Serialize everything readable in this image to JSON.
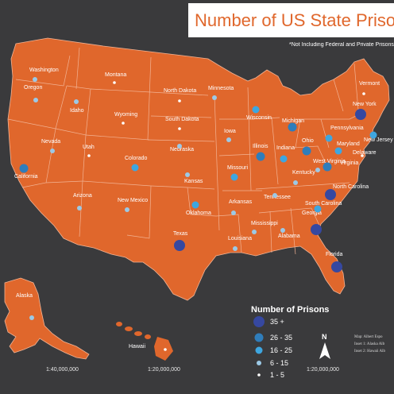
{
  "title": "Number of US State Prisons p",
  "note": "*Not Including Federal and Private Prisons",
  "colors": {
    "background": "#3a3a3c",
    "land": "#e0672c",
    "border": "#f2b394",
    "tier_35_plus": "#3648a0",
    "tier_26_35": "#2f7dbb",
    "tier_16_25": "#3ea6e0",
    "tier_6_15": "#9cc9e6",
    "tier_1_5": "#ffffff"
  },
  "legend": {
    "title": "Number of Prisons",
    "items": [
      {
        "label": "35 +",
        "tier": "tier_35_plus"
      },
      {
        "label": "26 - 35",
        "tier": "tier_26_35"
      },
      {
        "label": "16 - 25",
        "tier": "tier_16_25"
      },
      {
        "label": "6 - 15",
        "tier": "tier_6_15"
      },
      {
        "label": "1 - 5",
        "tier": "tier_1_5"
      }
    ]
  },
  "scales": {
    "alaska": "1:40,000,000",
    "hawaii": "1:20,000,000",
    "main": "1:20,000,000"
  },
  "north_label": "N",
  "source_lines": [
    "Map: Albert Espo",
    "Inset 1: Alaska Alb",
    "Inset 2: Hawaii Alb"
  ],
  "states": [
    {
      "name": "Washington",
      "tier": "tier_6_15"
    },
    {
      "name": "Oregon",
      "tier": "tier_6_15"
    },
    {
      "name": "California",
      "tier": "tier_26_35"
    },
    {
      "name": "Idaho",
      "tier": "tier_6_15"
    },
    {
      "name": "Nevada",
      "tier": "tier_6_15"
    },
    {
      "name": "Utah",
      "tier": "tier_1_5"
    },
    {
      "name": "Arizona",
      "tier": "tier_6_15"
    },
    {
      "name": "Montana",
      "tier": "tier_1_5"
    },
    {
      "name": "Wyoming",
      "tier": "tier_1_5"
    },
    {
      "name": "Colorado",
      "tier": "tier_16_25"
    },
    {
      "name": "New Mexico",
      "tier": "tier_6_15"
    },
    {
      "name": "North Dakota",
      "tier": "tier_1_5"
    },
    {
      "name": "South Dakota",
      "tier": "tier_1_5"
    },
    {
      "name": "Nebraska",
      "tier": "tier_6_15"
    },
    {
      "name": "Kansas",
      "tier": "tier_6_15"
    },
    {
      "name": "Oklahoma",
      "tier": "tier_16_25"
    },
    {
      "name": "Texas",
      "tier": "tier_35_plus"
    },
    {
      "name": "Minnesota",
      "tier": "tier_6_15"
    },
    {
      "name": "Iowa",
      "tier": "tier_6_15"
    },
    {
      "name": "Missouri",
      "tier": "tier_16_25"
    },
    {
      "name": "Arkansas",
      "tier": "tier_6_15"
    },
    {
      "name": "Louisiana",
      "tier": "tier_6_15"
    },
    {
      "name": "Wisconsin",
      "tier": "tier_16_25"
    },
    {
      "name": "Illinois",
      "tier": "tier_26_35"
    },
    {
      "name": "Michigan",
      "tier": "tier_26_35"
    },
    {
      "name": "Indiana",
      "tier": "tier_16_25"
    },
    {
      "name": "Ohio",
      "tier": "tier_26_35"
    },
    {
      "name": "Kentucky",
      "tier": "tier_6_15"
    },
    {
      "name": "Tennessee",
      "tier": "tier_6_15"
    },
    {
      "name": "Mississippi",
      "tier": "tier_6_15"
    },
    {
      "name": "Alabama",
      "tier": "tier_6_15"
    },
    {
      "name": "Georgia",
      "tier": "tier_35_plus"
    },
    {
      "name": "Florida",
      "tier": "tier_35_plus"
    },
    {
      "name": "South Carolina",
      "tier": "tier_16_25"
    },
    {
      "name": "North Carolina",
      "tier": "tier_35_plus"
    },
    {
      "name": "Virginia",
      "tier": "tier_26_35"
    },
    {
      "name": "West Virginia",
      "tier": "tier_6_15"
    },
    {
      "name": "Maryland",
      "tier": "tier_16_25"
    },
    {
      "name": "Pennsylvania",
      "tier": "tier_16_25"
    },
    {
      "name": "New York",
      "tier": "tier_35_plus"
    },
    {
      "name": "Vermont",
      "tier": "tier_1_5"
    },
    {
      "name": "New Jersey",
      "tier": "tier_16_25"
    },
    {
      "name": "Delaware",
      "tier": "tier_1_5"
    },
    {
      "name": "Alaska",
      "tier": "tier_6_15"
    },
    {
      "name": "Hawaii",
      "tier": "tier_1_5"
    }
  ]
}
